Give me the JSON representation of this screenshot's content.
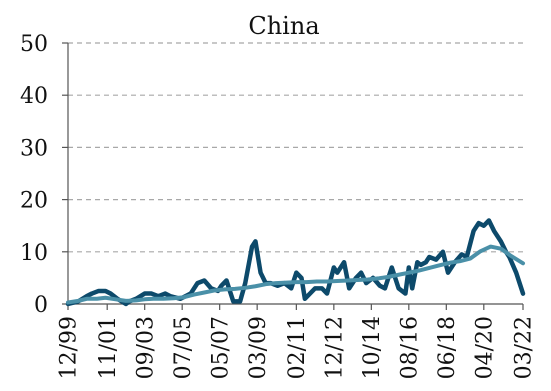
{
  "chart_data": {
    "type": "line",
    "title": "China",
    "xlabel": "",
    "ylabel": "",
    "ylim": [
      0,
      50
    ],
    "yticks": [
      0,
      10,
      20,
      30,
      40,
      50
    ],
    "grid": true,
    "grid_style": "dashed",
    "x_tick_labels": [
      "12/99",
      "11/01",
      "09/03",
      "07/05",
      "05/07",
      "03/09",
      "02/11",
      "12/12",
      "10/14",
      "08/16",
      "06/18",
      "04/20",
      "03/22"
    ],
    "x_tick_positions": [
      0,
      23,
      45,
      67,
      89,
      111,
      134,
      156,
      178,
      200,
      222,
      244,
      267
    ],
    "series": [
      {
        "color": "#0d4a6b",
        "x": [
          0,
          6,
          11,
          14,
          18,
          22,
          25,
          29,
          34,
          36,
          40,
          45,
          49,
          53,
          57,
          60,
          66,
          72,
          76,
          80,
          84,
          88,
          90,
          93,
          97,
          101,
          104,
          108,
          110,
          113,
          116,
          119,
          123,
          127,
          131,
          134,
          137,
          139,
          142,
          145,
          149,
          152,
          156,
          158,
          162,
          165,
          169,
          172,
          175,
          179,
          183,
          186,
          190,
          194,
          198,
          200,
          202,
          205,
          207,
          210,
          212,
          216,
          220,
          223,
          227,
          231,
          234,
          238,
          241,
          244,
          247,
          250,
          254,
          257,
          259,
          263,
          265,
          267
        ],
        "values": [
          0,
          0.5,
          1.5,
          2,
          2.5,
          2.5,
          2,
          1,
          0,
          0.5,
          1,
          2,
          2,
          1.5,
          2,
          1.5,
          1,
          2,
          4,
          4.5,
          3,
          2.5,
          3.5,
          4.5,
          0.5,
          0.5,
          4,
          11,
          12,
          6,
          4,
          4,
          3.5,
          4,
          3,
          6,
          5,
          1,
          2,
          3,
          3,
          2,
          7,
          6,
          8,
          3,
          5,
          6,
          4,
          5,
          3.5,
          3,
          7,
          3,
          2,
          7,
          3,
          8,
          7.5,
          8,
          9,
          8.5,
          10,
          6,
          8,
          9.5,
          9,
          14,
          15.5,
          15,
          16,
          14,
          12,
          10,
          9,
          6,
          4,
          2
        ]
      },
      {
        "color": "#4a90a8",
        "x": [
          0,
          6,
          11,
          17,
          22,
          28,
          34,
          40,
          45,
          50,
          56,
          62,
          68,
          74,
          80,
          86,
          92,
          98,
          104,
          110,
          116,
          122,
          128,
          134,
          140,
          146,
          152,
          158,
          164,
          170,
          176,
          182,
          188,
          194,
          200,
          206,
          212,
          218,
          224,
          230,
          236,
          242,
          248,
          254,
          260,
          267
        ],
        "values": [
          0.3,
          0.6,
          1,
          1,
          1.2,
          0.9,
          0.6,
          0.7,
          0.9,
          1,
          1,
          1.1,
          1.3,
          1.8,
          2.2,
          2.6,
          2.8,
          2.9,
          3.1,
          3.4,
          3.8,
          4,
          4.1,
          4.2,
          4.2,
          4.3,
          4.3,
          4.4,
          4.5,
          4.6,
          4.7,
          4.9,
          5.2,
          5.6,
          6,
          6.4,
          6.9,
          7.4,
          7.9,
          8.2,
          8.7,
          10.1,
          11,
          10.6,
          9.2,
          7.8
        ]
      }
    ]
  }
}
